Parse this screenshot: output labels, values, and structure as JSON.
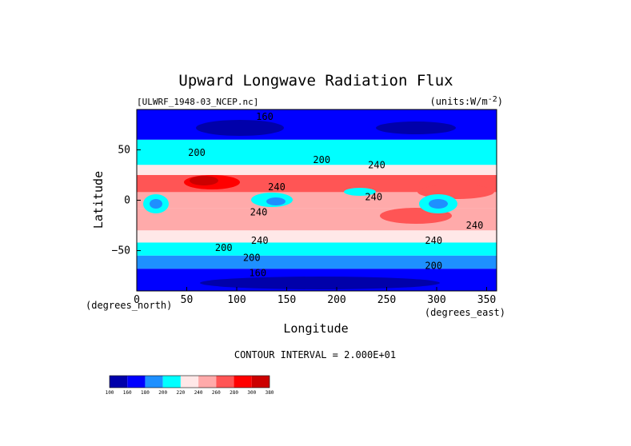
{
  "chart_data": {
    "type": "heatmap",
    "title": "Upward Longwave Radiation Flux",
    "file_label": "[ULWRF_1948-03_NCEP.nc]",
    "units_label": "(units:W/m^2)",
    "units_prefix": "(units:W/m",
    "units_sup": "-2",
    "units_suffix": ")",
    "xlabel": "Longitude",
    "ylabel": "Latitude",
    "x_unit_label": "(degrees_east)",
    "y_unit_label": "(degrees_north)",
    "xlim": [
      0,
      360
    ],
    "ylim": [
      -90,
      90
    ],
    "x_ticks": [
      0,
      50,
      100,
      150,
      200,
      250,
      300,
      350
    ],
    "y_ticks": [
      50,
      0,
      -50
    ],
    "contour_interval_label": "CONTOUR INTERVAL = 2.000E+01",
    "colorbar": {
      "levels": [
        100,
        160,
        180,
        200,
        220,
        240,
        260,
        280,
        300,
        380
      ],
      "colors": [
        "#0000aa",
        "#0000ff",
        "#1e90ff",
        "#00ffff",
        "#ffe8e8",
        "#ffaaaa",
        "#ff5555",
        "#ff0000",
        "#cc0000"
      ]
    },
    "latitude_bands": [
      {
        "lat_range": [
          60,
          90
        ],
        "level_index": 1
      },
      {
        "lat_range": [
          35,
          60
        ],
        "level_index": 3
      },
      {
        "lat_range": [
          25,
          35
        ],
        "level_index": 4
      },
      {
        "lat_range": [
          8,
          25
        ],
        "level_index": 6
      },
      {
        "lat_range": [
          -8,
          8
        ],
        "level_index": 5
      },
      {
        "lat_range": [
          -30,
          -8
        ],
        "level_index": 5
      },
      {
        "lat_range": [
          -42,
          -30
        ],
        "level_index": 4
      },
      {
        "lat_range": [
          -55,
          -42
        ],
        "level_index": 3
      },
      {
        "lat_range": [
          -68,
          -55
        ],
        "level_index": 2
      },
      {
        "lat_range": [
          -90,
          -68
        ],
        "level_index": 1
      }
    ],
    "contour_labels": [
      {
        "text": "160",
        "lon": 128,
        "lat": 83
      },
      {
        "text": "200",
        "lon": 60,
        "lat": 47
      },
      {
        "text": "200",
        "lon": 185,
        "lat": 40
      },
      {
        "text": "240",
        "lon": 240,
        "lat": 35
      },
      {
        "text": "240",
        "lon": 140,
        "lat": 13
      },
      {
        "text": "240",
        "lon": 237,
        "lat": 3
      },
      {
        "text": "240",
        "lon": 122,
        "lat": -12
      },
      {
        "text": "240",
        "lon": 123,
        "lat": -40
      },
      {
        "text": "240",
        "lon": 297,
        "lat": -40
      },
      {
        "text": "240",
        "lon": 338,
        "lat": -25
      },
      {
        "text": "200",
        "lon": 87,
        "lat": -47
      },
      {
        "text": "200",
        "lon": 115,
        "lat": -57
      },
      {
        "text": "200",
        "lon": 297,
        "lat": -65
      },
      {
        "text": "160",
        "lon": 121,
        "lat": -72
      }
    ]
  }
}
